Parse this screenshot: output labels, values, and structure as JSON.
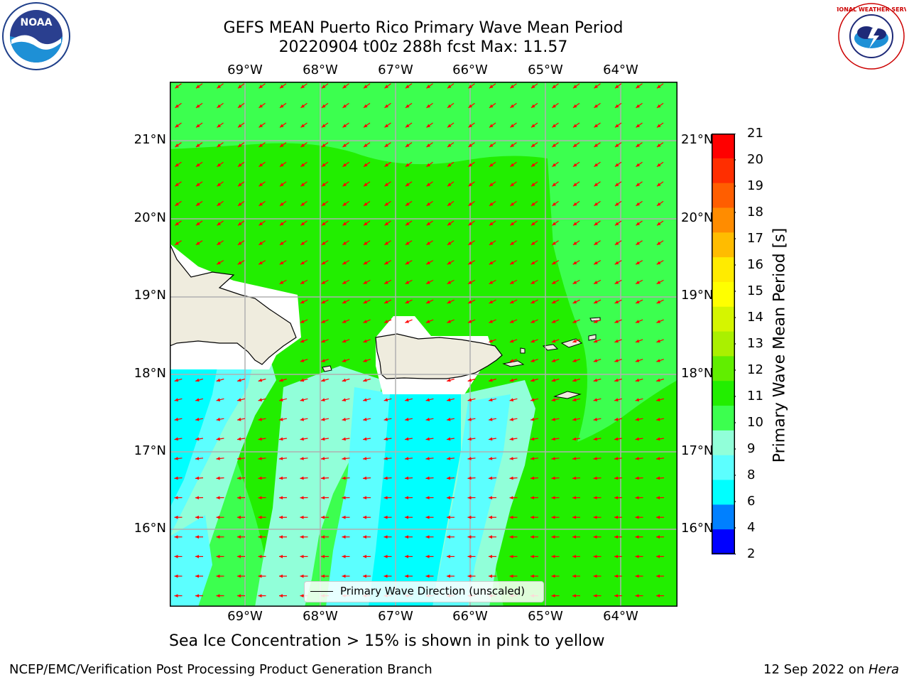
{
  "header": {
    "title_line1": "GEFS MEAN Puerto Rico Primary Wave Mean Period",
    "title_line2": "20220904 t00z 288h fcst   Max: 11.57"
  },
  "logos": {
    "left": "NOAA",
    "right": "NATIONAL WEATHER SERVICE"
  },
  "map": {
    "lon_labels": [
      "69°W",
      "68°W",
      "67°W",
      "66°W",
      "65°W",
      "64°W"
    ],
    "lat_labels": [
      "21°N",
      "20°N",
      "19°N",
      "18°N",
      "17°N",
      "16°N"
    ],
    "arrow_color": "#ff0000",
    "land_color": "#efecde",
    "legend_label": "Primary Wave Direction (unscaled)"
  },
  "colorbar": {
    "title": "Primary Wave Mean Period [s]",
    "ticks": [
      "21",
      "20",
      "19",
      "18",
      "17",
      "16",
      "15",
      "14",
      "13",
      "12",
      "11",
      "10",
      "9",
      "8",
      "6",
      "4",
      "2"
    ],
    "colors": [
      "#ff0000",
      "#ff2e00",
      "#ff5e00",
      "#ff8c00",
      "#ffbc00",
      "#ffeb00",
      "#ffff00",
      "#d5f500",
      "#aaf000",
      "#61ee00",
      "#22ee00",
      "#3cff4f",
      "#91ffd9",
      "#5cffff",
      "#00ffff",
      "#0080ff",
      "#0000ff"
    ]
  },
  "footer": {
    "note": "Sea Ice Concentration > 15% is shown in pink to yellow",
    "left": "NCEP/EMC/Verification Post Processing Product Generation Branch",
    "date": "12 Sep 2022 on ",
    "machine": "Hera"
  }
}
